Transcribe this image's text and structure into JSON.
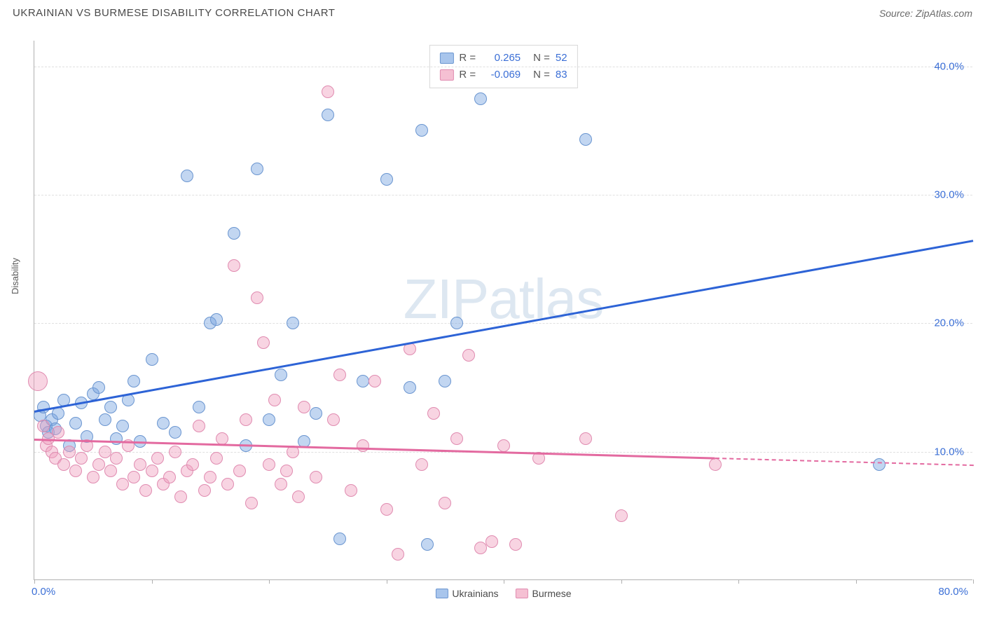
{
  "header": {
    "title": "UKRAINIAN VS BURMESE DISABILITY CORRELATION CHART",
    "source": "Source: ZipAtlas.com"
  },
  "watermark": {
    "zip": "ZIP",
    "atlas": "atlas"
  },
  "chart": {
    "type": "scatter",
    "ylabel": "Disability",
    "xlim": [
      0,
      80
    ],
    "ylim": [
      0,
      42
    ],
    "yticks": [
      10,
      20,
      30,
      40
    ],
    "ytick_labels": [
      "10.0%",
      "20.0%",
      "30.0%",
      "40.0%"
    ],
    "xticks": [
      0,
      10,
      20,
      30,
      40,
      50,
      60,
      70,
      80
    ],
    "xtick_label_left": "0.0%",
    "xtick_label_right": "80.0%",
    "grid_color": "#e0e0e0",
    "axis_color": "#b0b0b0",
    "background": "#ffffff",
    "label_color": "#3b6fd6",
    "marker_radius_base": 9,
    "series": [
      {
        "name": "Ukrainians",
        "fill": "rgba(120,165,225,0.45)",
        "stroke": "#6a95d0",
        "legend_fill": "#a8c5ec",
        "legend_stroke": "#6a95d0",
        "R": "0.265",
        "N": "52",
        "trend": {
          "x1": 0,
          "y1": 13.2,
          "x2": 80,
          "y2": 26.5,
          "color": "#2d63d6",
          "solid_until": 80
        },
        "points": [
          [
            0.5,
            12.8
          ],
          [
            0.8,
            13.5
          ],
          [
            1.0,
            12.0
          ],
          [
            1.2,
            11.5
          ],
          [
            1.5,
            12.5
          ],
          [
            1.8,
            11.8
          ],
          [
            2.0,
            13.0
          ],
          [
            2.5,
            14.0
          ],
          [
            3.0,
            10.5
          ],
          [
            3.5,
            12.2
          ],
          [
            4.0,
            13.8
          ],
          [
            4.5,
            11.2
          ],
          [
            5.0,
            14.5
          ],
          [
            5.5,
            15.0
          ],
          [
            6.0,
            12.5
          ],
          [
            6.5,
            13.5
          ],
          [
            7.0,
            11.0
          ],
          [
            7.5,
            12.0
          ],
          [
            8.0,
            14.0
          ],
          [
            8.5,
            15.5
          ],
          [
            9.0,
            10.8
          ],
          [
            10.0,
            17.2
          ],
          [
            11.0,
            12.2
          ],
          [
            12.0,
            11.5
          ],
          [
            13.0,
            31.5
          ],
          [
            14.0,
            13.5
          ],
          [
            15.0,
            20.0
          ],
          [
            15.5,
            20.3
          ],
          [
            17.0,
            27.0
          ],
          [
            18.0,
            10.5
          ],
          [
            19.0,
            32.0
          ],
          [
            20.0,
            12.5
          ],
          [
            21.0,
            16.0
          ],
          [
            22.0,
            20.0
          ],
          [
            23.0,
            10.8
          ],
          [
            24.0,
            13.0
          ],
          [
            25.0,
            36.2
          ],
          [
            26.0,
            3.2
          ],
          [
            28.0,
            15.5
          ],
          [
            30.0,
            31.2
          ],
          [
            32.0,
            15.0
          ],
          [
            33.0,
            35.0
          ],
          [
            33.5,
            2.8
          ],
          [
            35.0,
            15.5
          ],
          [
            36.0,
            20.0
          ],
          [
            38.0,
            37.5
          ],
          [
            47.0,
            34.3
          ],
          [
            72.0,
            9.0
          ]
        ]
      },
      {
        "name": "Burmese",
        "fill": "rgba(240,160,190,0.45)",
        "stroke": "#e08bb0",
        "legend_fill": "#f5c0d3",
        "legend_stroke": "#e08bb0",
        "R": "-0.069",
        "N": "83",
        "trend": {
          "x1": 0,
          "y1": 11.0,
          "x2": 80,
          "y2": 9.0,
          "color": "#e36aa0",
          "solid_until": 58
        },
        "points": [
          [
            0.3,
            15.5,
            14
          ],
          [
            0.8,
            12.0
          ],
          [
            1.0,
            10.5
          ],
          [
            1.2,
            11.0
          ],
          [
            1.5,
            10.0
          ],
          [
            1.8,
            9.5
          ],
          [
            2.0,
            11.5
          ],
          [
            2.5,
            9.0
          ],
          [
            3.0,
            10.0
          ],
          [
            3.5,
            8.5
          ],
          [
            4.0,
            9.5
          ],
          [
            4.5,
            10.5
          ],
          [
            5.0,
            8.0
          ],
          [
            5.5,
            9.0
          ],
          [
            6.0,
            10.0
          ],
          [
            6.5,
            8.5
          ],
          [
            7.0,
            9.5
          ],
          [
            7.5,
            7.5
          ],
          [
            8.0,
            10.5
          ],
          [
            8.5,
            8.0
          ],
          [
            9.0,
            9.0
          ],
          [
            9.5,
            7.0
          ],
          [
            10.0,
            8.5
          ],
          [
            10.5,
            9.5
          ],
          [
            11.0,
            7.5
          ],
          [
            11.5,
            8.0
          ],
          [
            12.0,
            10.0
          ],
          [
            12.5,
            6.5
          ],
          [
            13.0,
            8.5
          ],
          [
            13.5,
            9.0
          ],
          [
            14.0,
            12.0
          ],
          [
            14.5,
            7.0
          ],
          [
            15.0,
            8.0
          ],
          [
            15.5,
            9.5
          ],
          [
            16.0,
            11.0
          ],
          [
            16.5,
            7.5
          ],
          [
            17.0,
            24.5
          ],
          [
            17.5,
            8.5
          ],
          [
            18.0,
            12.5
          ],
          [
            18.5,
            6.0
          ],
          [
            19.0,
            22.0
          ],
          [
            19.5,
            18.5
          ],
          [
            20.0,
            9.0
          ],
          [
            20.5,
            14.0
          ],
          [
            21.0,
            7.5
          ],
          [
            21.5,
            8.5
          ],
          [
            22.0,
            10.0
          ],
          [
            22.5,
            6.5
          ],
          [
            23.0,
            13.5
          ],
          [
            24.0,
            8.0
          ],
          [
            25.0,
            38.0
          ],
          [
            25.5,
            12.5
          ],
          [
            26.0,
            16.0
          ],
          [
            27.0,
            7.0
          ],
          [
            28.0,
            10.5
          ],
          [
            29.0,
            15.5
          ],
          [
            30.0,
            5.5
          ],
          [
            31.0,
            2.0
          ],
          [
            32.0,
            18.0
          ],
          [
            33.0,
            9.0
          ],
          [
            34.0,
            13.0
          ],
          [
            35.0,
            6.0
          ],
          [
            36.0,
            11.0
          ],
          [
            37.0,
            17.5
          ],
          [
            38.0,
            2.5
          ],
          [
            39.0,
            3.0
          ],
          [
            40.0,
            10.5
          ],
          [
            41.0,
            2.8
          ],
          [
            43.0,
            9.5
          ],
          [
            47.0,
            11.0
          ],
          [
            50.0,
            5.0
          ],
          [
            58.0,
            9.0
          ]
        ]
      }
    ]
  }
}
